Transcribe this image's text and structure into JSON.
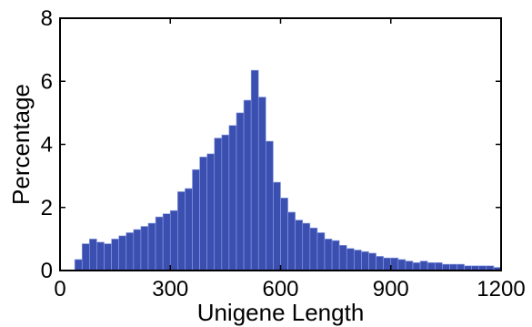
{
  "chart_data": {
    "type": "bar",
    "title": "",
    "xlabel": "Unigene Length",
    "ylabel": "Percentage",
    "xlim": [
      0,
      1200
    ],
    "ylim": [
      0,
      8
    ],
    "x_ticks": [
      "0",
      "300",
      "600",
      "900",
      "1200"
    ],
    "y_ticks": [
      "0",
      "2",
      "4",
      "6",
      "8"
    ],
    "grid": false,
    "bar_color": "#3B4FB0",
    "bin_width": 20,
    "bins_start": [
      40,
      60,
      80,
      100,
      120,
      140,
      160,
      180,
      200,
      220,
      240,
      260,
      280,
      300,
      320,
      340,
      360,
      380,
      400,
      420,
      440,
      460,
      480,
      500,
      520,
      540,
      560,
      580,
      600,
      620,
      640,
      660,
      680,
      700,
      720,
      740,
      760,
      780,
      800,
      820,
      840,
      860,
      880,
      900,
      920,
      940,
      960,
      980,
      1000,
      1020,
      1040,
      1060,
      1080,
      1100,
      1120,
      1140,
      1160,
      1180
    ],
    "values": [
      0.35,
      0.85,
      1.0,
      0.9,
      0.85,
      1.0,
      1.1,
      1.2,
      1.3,
      1.4,
      1.5,
      1.7,
      1.8,
      1.9,
      2.5,
      2.6,
      3.2,
      3.6,
      3.7,
      4.2,
      4.3,
      4.6,
      5.0,
      5.4,
      6.35,
      5.5,
      4.1,
      2.8,
      2.3,
      1.85,
      1.6,
      1.5,
      1.35,
      1.2,
      1.0,
      0.95,
      0.8,
      0.7,
      0.65,
      0.6,
      0.55,
      0.45,
      0.4,
      0.4,
      0.35,
      0.3,
      0.25,
      0.3,
      0.25,
      0.25,
      0.2,
      0.2,
      0.2,
      0.15,
      0.15,
      0.15,
      0.15,
      0.1
    ]
  }
}
